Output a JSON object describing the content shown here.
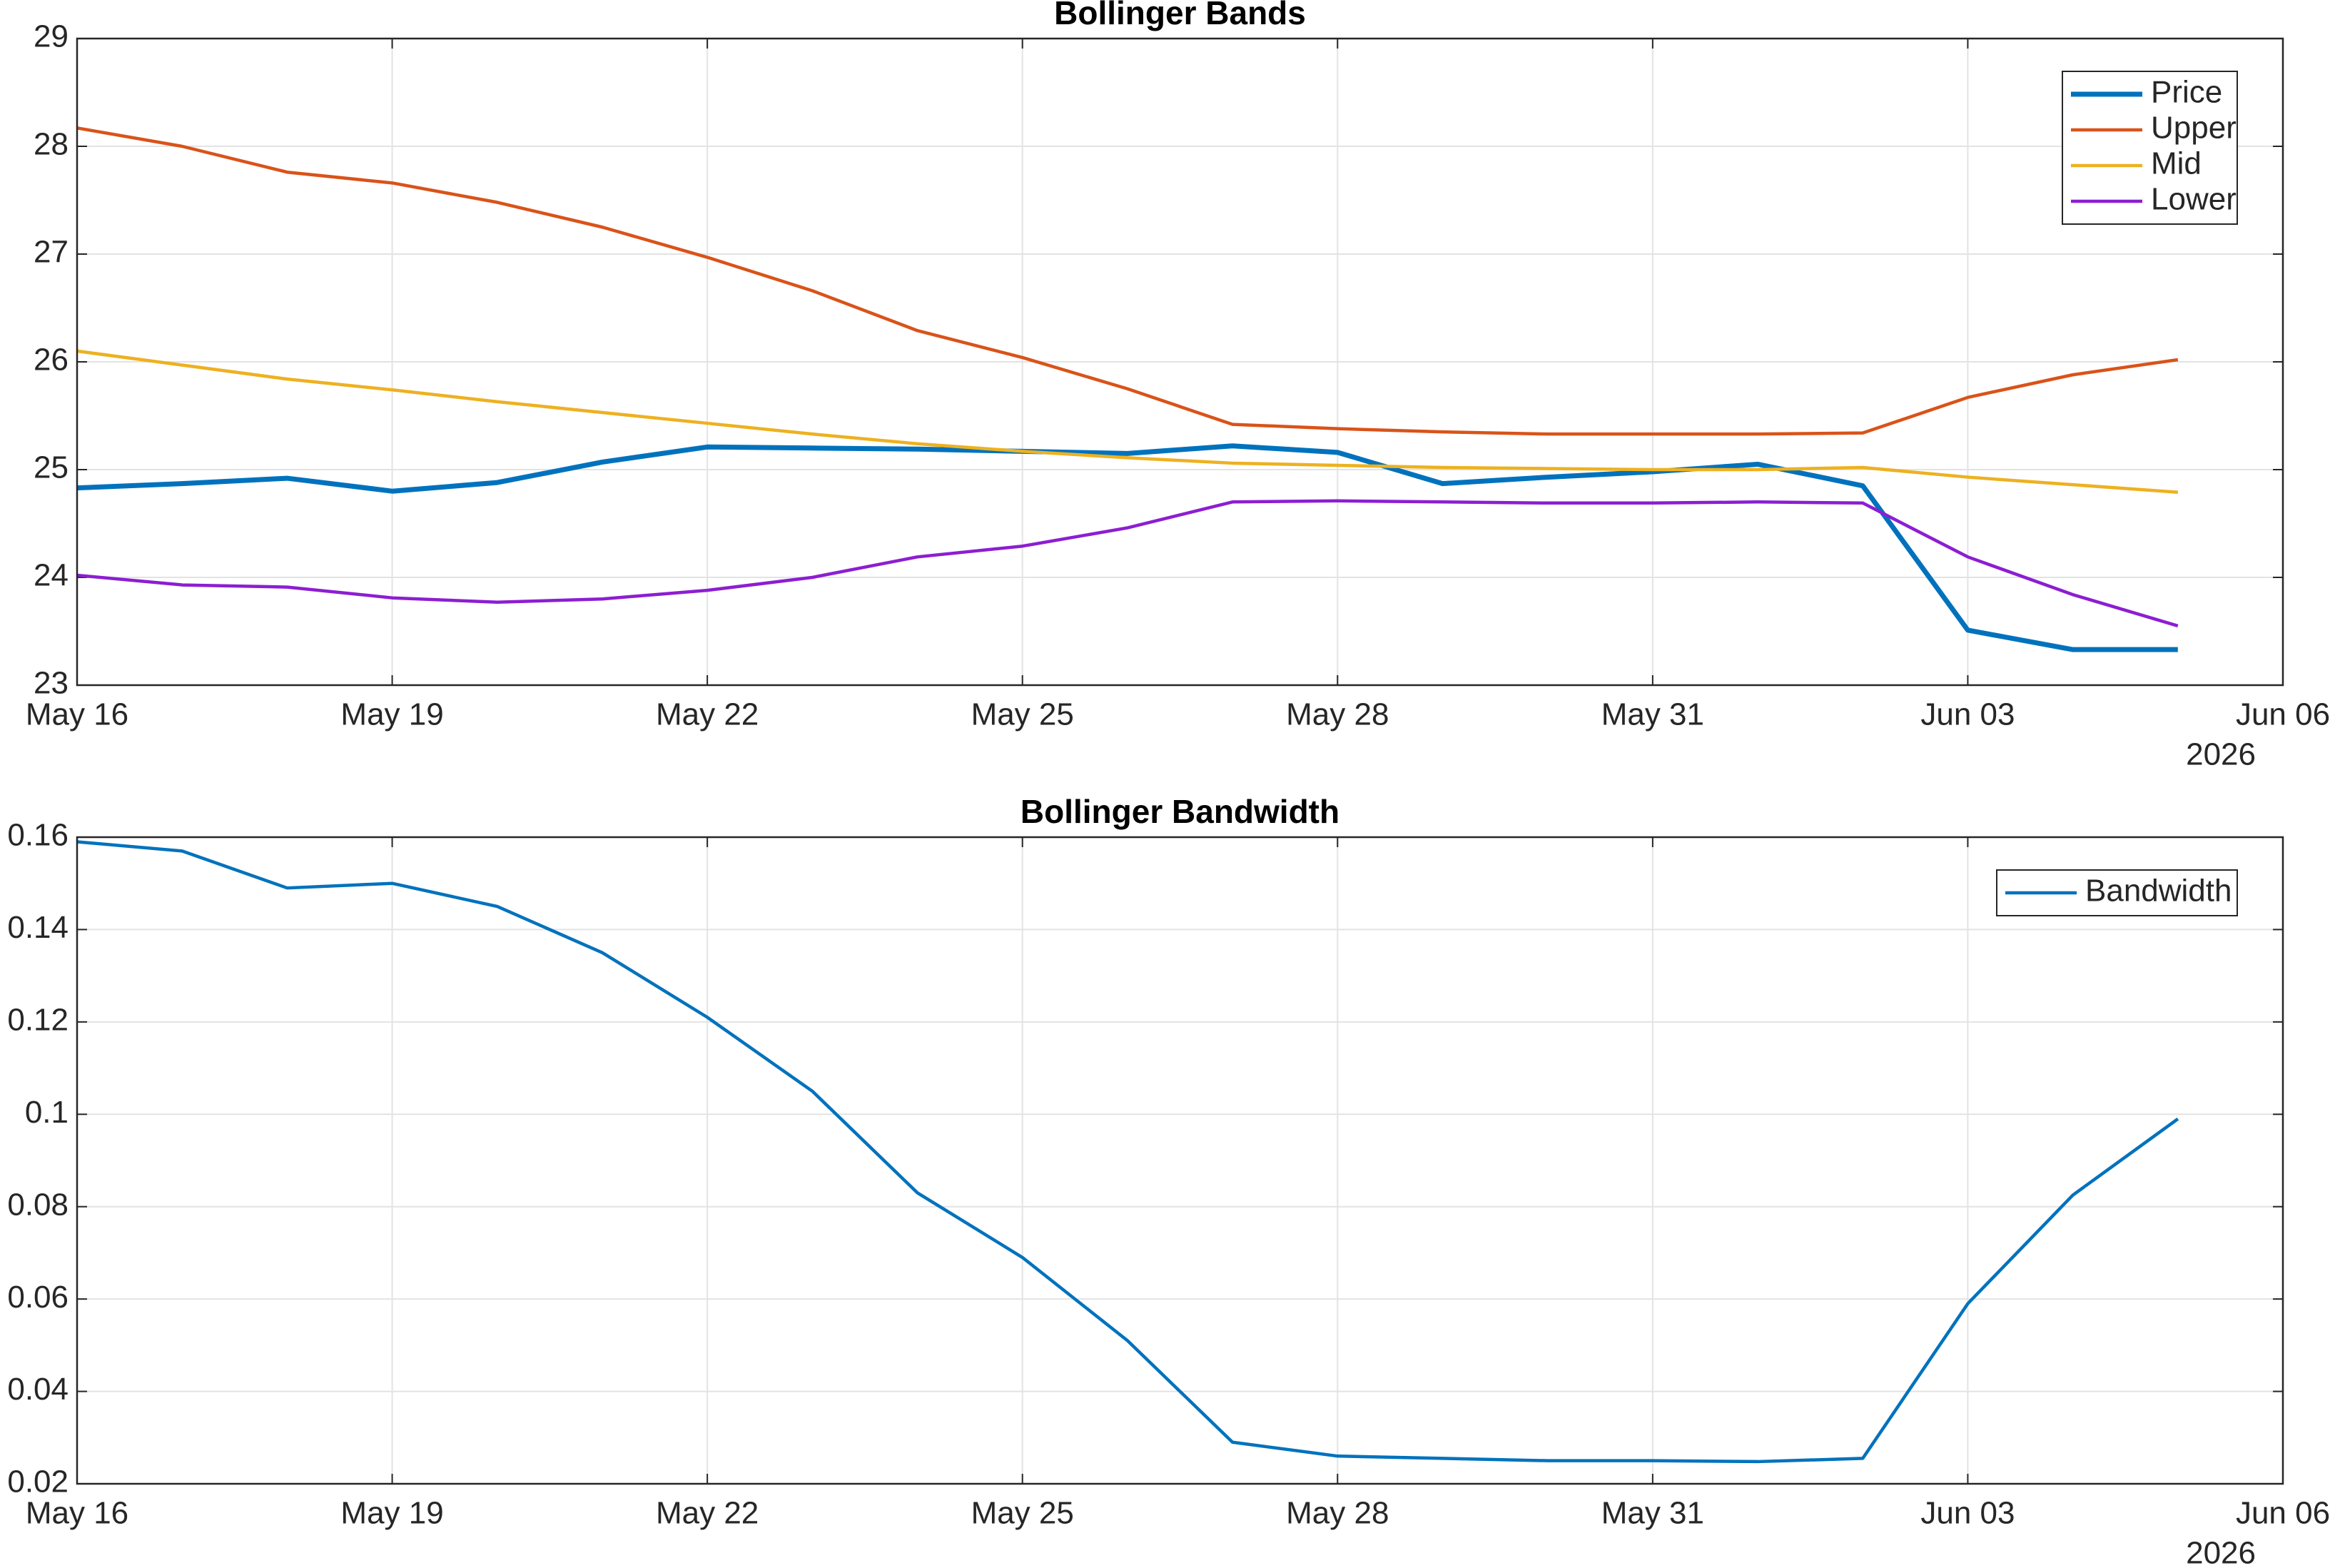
{
  "chart_data": [
    {
      "type": "line",
      "title": "Bollinger Bands",
      "x": [
        "2026-05-16",
        "2026-05-17",
        "2026-05-18",
        "2026-05-19",
        "2026-05-20",
        "2026-05-21",
        "2026-05-22",
        "2026-05-23",
        "2026-05-24",
        "2026-05-25",
        "2026-05-26",
        "2026-05-27",
        "2026-05-28",
        "2026-05-29",
        "2026-05-30",
        "2026-05-31",
        "2026-06-01",
        "2026-06-02",
        "2026-06-03",
        "2026-06-04",
        "2026-06-05"
      ],
      "series": [
        {
          "name": "Price",
          "color": "#0072BD",
          "line_width": 7,
          "values": [
            24.83,
            24.87,
            24.92,
            24.8,
            24.88,
            25.07,
            25.21,
            25.2,
            25.19,
            25.17,
            25.15,
            25.22,
            25.16,
            24.87,
            24.93,
            24.98,
            25.05,
            24.85,
            23.51,
            23.33,
            23.33
          ]
        },
        {
          "name": "Upper",
          "color": "#D95319",
          "line_width": 4.5,
          "values": [
            28.17,
            28.0,
            27.76,
            27.66,
            27.48,
            27.25,
            26.97,
            26.66,
            26.29,
            26.04,
            25.75,
            25.42,
            25.38,
            25.35,
            25.33,
            25.33,
            25.33,
            25.34,
            25.67,
            25.88,
            26.02
          ]
        },
        {
          "name": "Mid",
          "color": "#EDB120",
          "line_width": 4.5,
          "values": [
            26.1,
            25.97,
            25.84,
            25.74,
            25.63,
            25.53,
            25.43,
            25.33,
            25.24,
            25.17,
            25.11,
            25.06,
            25.04,
            25.02,
            25.01,
            25.0,
            25.0,
            25.02,
            24.93,
            24.86,
            24.79
          ]
        },
        {
          "name": "Lower",
          "color": "#8C1ED2",
          "line_width": 4.5,
          "values": [
            24.02,
            23.93,
            23.91,
            23.81,
            23.77,
            23.8,
            23.88,
            24.0,
            24.19,
            24.29,
            24.46,
            24.7,
            24.71,
            24.7,
            24.69,
            24.69,
            24.7,
            24.69,
            24.19,
            23.84,
            23.55
          ]
        }
      ],
      "xlim": [
        "2026-05-16",
        "2026-06-06"
      ],
      "xticks": [
        {
          "value": "2026-05-16",
          "label": "May 16"
        },
        {
          "value": "2026-05-19",
          "label": "May 19"
        },
        {
          "value": "2026-05-22",
          "label": "May 22"
        },
        {
          "value": "2026-05-25",
          "label": "May 25"
        },
        {
          "value": "2026-05-28",
          "label": "May 28"
        },
        {
          "value": "2026-05-31",
          "label": "May 31"
        },
        {
          "value": "2026-06-03",
          "label": "Jun 03"
        },
        {
          "value": "2026-06-06",
          "label": "Jun 06"
        }
      ],
      "x_year": "2026",
      "ylim": [
        23,
        29
      ],
      "yticks": [
        23,
        24,
        25,
        26,
        27,
        28,
        29
      ],
      "grid": true,
      "legend": "upper-right"
    },
    {
      "type": "line",
      "title": "Bollinger Bandwidth",
      "x": [
        "2026-05-16",
        "2026-05-17",
        "2026-05-18",
        "2026-05-19",
        "2026-05-20",
        "2026-05-21",
        "2026-05-22",
        "2026-05-23",
        "2026-05-24",
        "2026-05-25",
        "2026-05-26",
        "2026-05-27",
        "2026-05-28",
        "2026-05-29",
        "2026-05-30",
        "2026-05-31",
        "2026-06-01",
        "2026-06-02",
        "2026-06-03",
        "2026-06-04",
        "2026-06-05"
      ],
      "series": [
        {
          "name": "Bandwidth",
          "color": "#0072BD",
          "line_width": 4.5,
          "values": [
            0.159,
            0.157,
            0.149,
            0.15,
            0.145,
            0.135,
            0.121,
            0.105,
            0.083,
            0.069,
            0.051,
            0.029,
            0.026,
            0.0255,
            0.025,
            0.025,
            0.0248,
            0.0255,
            0.059,
            0.0825,
            0.099
          ]
        }
      ],
      "xlim": [
        "2026-05-16",
        "2026-06-06"
      ],
      "xticks": [
        {
          "value": "2026-05-16",
          "label": "May 16"
        },
        {
          "value": "2026-05-19",
          "label": "May 19"
        },
        {
          "value": "2026-05-22",
          "label": "May 22"
        },
        {
          "value": "2026-05-25",
          "label": "May 25"
        },
        {
          "value": "2026-05-28",
          "label": "May 28"
        },
        {
          "value": "2026-05-31",
          "label": "May 31"
        },
        {
          "value": "2026-06-03",
          "label": "Jun 03"
        },
        {
          "value": "2026-06-06",
          "label": "Jun 06"
        }
      ],
      "x_year": "2026",
      "ylim": [
        0.02,
        0.16
      ],
      "yticks": [
        0.02,
        0.04,
        0.06,
        0.08,
        0.1,
        0.12,
        0.14,
        0.16
      ],
      "grid": true,
      "legend": "upper-right"
    }
  ]
}
